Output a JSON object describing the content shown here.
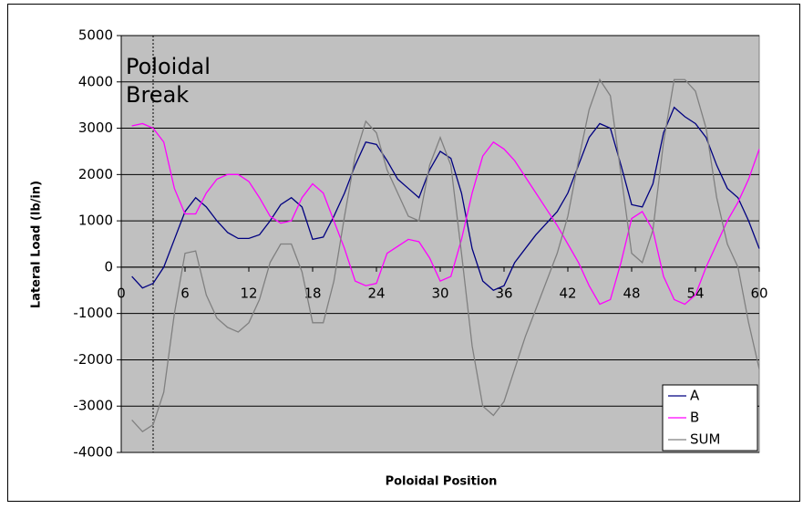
{
  "chart_data": {
    "type": "line",
    "x_label": "Poloidal Position",
    "y_label": "Lateral Load (lb/in)",
    "x": [
      1,
      2,
      3,
      4,
      5,
      6,
      7,
      8,
      9,
      10,
      11,
      12,
      13,
      14,
      15,
      16,
      17,
      18,
      19,
      20,
      21,
      22,
      23,
      24,
      25,
      26,
      27,
      28,
      29,
      30,
      31,
      32,
      33,
      34,
      35,
      36,
      37,
      38,
      39,
      40,
      41,
      42,
      43,
      44,
      45,
      46,
      47,
      48,
      49,
      50,
      51,
      52,
      53,
      54,
      55,
      56,
      57,
      58,
      59,
      60
    ],
    "series": [
      {
        "name": "A",
        "color": "#000080",
        "values": [
          -200,
          -450,
          -350,
          0,
          600,
          1200,
          1500,
          1300,
          1000,
          750,
          620,
          620,
          700,
          1000,
          1350,
          1500,
          1300,
          600,
          650,
          1100,
          1600,
          2200,
          2700,
          2650,
          2300,
          1900,
          1700,
          1500,
          2100,
          2500,
          2350,
          1600,
          400,
          -300,
          -500,
          -400,
          100,
          400,
          700,
          950,
          1200,
          1600,
          2200,
          2800,
          3100,
          3000,
          2200,
          1350,
          1300,
          1800,
          2900,
          3450,
          3250,
          3100,
          2800,
          2200,
          1700,
          1500,
          1000,
          400
        ]
      },
      {
        "name": "B",
        "color": "#ff00ff",
        "values": [
          3050,
          3100,
          3000,
          2700,
          1700,
          1150,
          1150,
          1600,
          1900,
          2000,
          2000,
          1850,
          1500,
          1100,
          950,
          1000,
          1500,
          1800,
          1600,
          1000,
          400,
          -300,
          -400,
          -350,
          300,
          450,
          600,
          550,
          200,
          -300,
          -200,
          600,
          1600,
          2400,
          2700,
          2550,
          2300,
          1950,
          1600,
          1250,
          900,
          500,
          100,
          -400,
          -800,
          -700,
          100,
          1050,
          1200,
          800,
          -200,
          -700,
          -800,
          -600,
          0,
          500,
          1000,
          1400,
          1900,
          2550
        ]
      },
      {
        "name": "SUM",
        "color": "#808080",
        "values": [
          -3300,
          -3550,
          -3400,
          -2700,
          -1000,
          300,
          350,
          -600,
          -1100,
          -1300,
          -1400,
          -1200,
          -700,
          100,
          500,
          500,
          -100,
          -1200,
          -1200,
          -300,
          1100,
          2400,
          3150,
          2900,
          2100,
          1600,
          1100,
          1000,
          2200,
          2800,
          2200,
          300,
          -1700,
          -3000,
          -3200,
          -2900,
          -2200,
          -1500,
          -900,
          -300,
          300,
          1100,
          2300,
          3400,
          4050,
          3700,
          2000,
          300,
          100,
          800,
          2700,
          4050,
          4050,
          3800,
          3000,
          1500,
          500,
          0,
          -1200,
          -2200
        ]
      }
    ],
    "xlim": [
      0,
      60
    ],
    "xticks": [
      0,
      6,
      12,
      18,
      24,
      30,
      36,
      42,
      48,
      54,
      60
    ],
    "ylim": [
      -4000,
      5000
    ],
    "yticks": [
      -4000,
      -3000,
      -2000,
      -1000,
      0,
      1000,
      2000,
      3000,
      4000,
      5000
    ],
    "grid": true,
    "plot_background": "#c0c0c0",
    "legend": "lower right",
    "annotation": {
      "text_lines": [
        "Poloidal",
        "Break"
      ],
      "x": 3
    }
  }
}
